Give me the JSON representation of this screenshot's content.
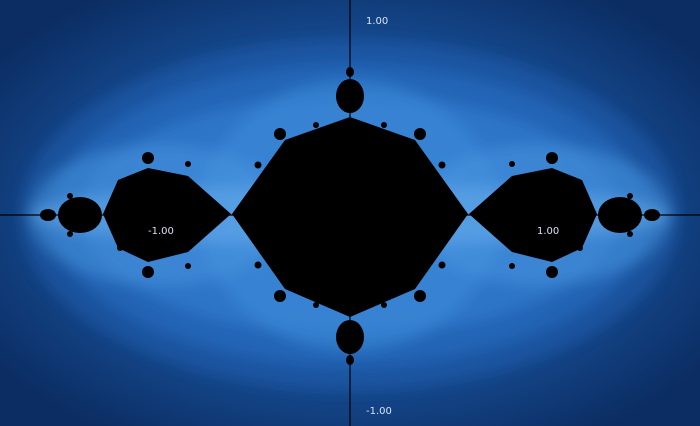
{
  "app": {
    "view": "fractal-viewer",
    "colors": {
      "background_outer": "#0b2d63",
      "glow_inner": "#9fd3ff",
      "set_fill": "#000000",
      "axis": "#000000",
      "label": "#d6e2f2"
    }
  },
  "axes": {
    "x_labels": {
      "left": "-1.00",
      "right": "1.00"
    },
    "y_labels": {
      "top": "1.00",
      "bottom": "-1.00"
    },
    "x_range": [
      -1.8,
      1.8
    ],
    "y_range": [
      -1.1,
      1.1
    ]
  },
  "fractal": {
    "type": "filled-julia-set",
    "c_real": -1.0,
    "c_imag": 0.0,
    "shading": "blue glow bands"
  }
}
